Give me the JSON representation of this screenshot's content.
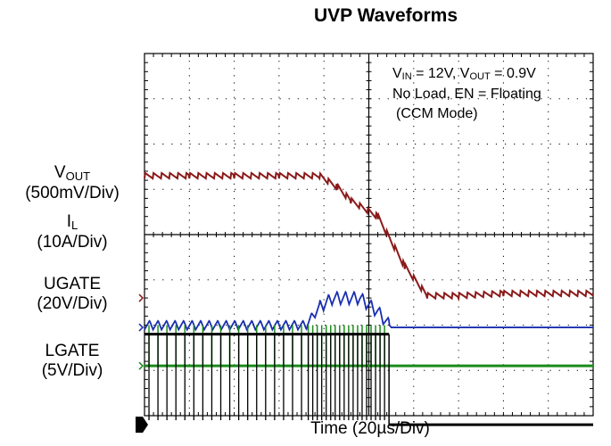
{
  "chart_data": {
    "type": "line",
    "title": "UVP Waveforms",
    "xlabel": "Time (20µs/Div)",
    "grid": true,
    "divisions": {
      "x": 10,
      "y": 8
    },
    "annotation": {
      "line1_vin": "12V",
      "line1_vout": "0.9V",
      "line2": "No Load, EN = Floating",
      "line3": "(CCM Mode)"
    },
    "series": [
      {
        "name": "VOUT",
        "label_main": "V",
        "label_sub": "OUT",
        "scale": "(500mV/Div)",
        "color": "#8b1a1a",
        "marker_div": 2.6,
        "x": [
          0,
          1,
          2,
          3,
          3.9,
          4.3,
          4.6,
          5.2,
          5.8,
          6.3,
          7,
          8,
          10
        ],
        "y": [
          5.3,
          5.3,
          5.3,
          5.3,
          5.3,
          5.05,
          4.75,
          4.4,
          3.3,
          2.65,
          2.65,
          2.7,
          2.7
        ]
      },
      {
        "name": "IL",
        "label_main": "I",
        "label_sub": "L",
        "scale": "(10A/Div)",
        "color": "#1a2fb0",
        "marker_div": 1.95,
        "x": [
          0,
          3.6,
          3.9,
          4.2,
          4.8,
          5.2,
          5.5,
          10
        ],
        "y": [
          2.0,
          2.0,
          2.4,
          2.6,
          2.6,
          2.3,
          1.95,
          1.95
        ]
      },
      {
        "name": "UGATE",
        "label_main": "UGATE",
        "label_sub": "",
        "scale": "(20V/Div)",
        "color": "#1a8c1a",
        "marker_div": 1.1,
        "x": [
          0,
          5.4,
          10
        ],
        "y": [
          1.1,
          1.1,
          1.1
        ]
      },
      {
        "name": "LGATE",
        "label_main": "LGATE",
        "label_sub": "",
        "scale": "(5V/Div)",
        "color": "#000000",
        "marker_div": -0.2,
        "x": [
          0,
          5.4,
          5.5,
          10
        ],
        "y": [
          1.8,
          1.8,
          -0.2,
          -0.2
        ]
      }
    ]
  }
}
